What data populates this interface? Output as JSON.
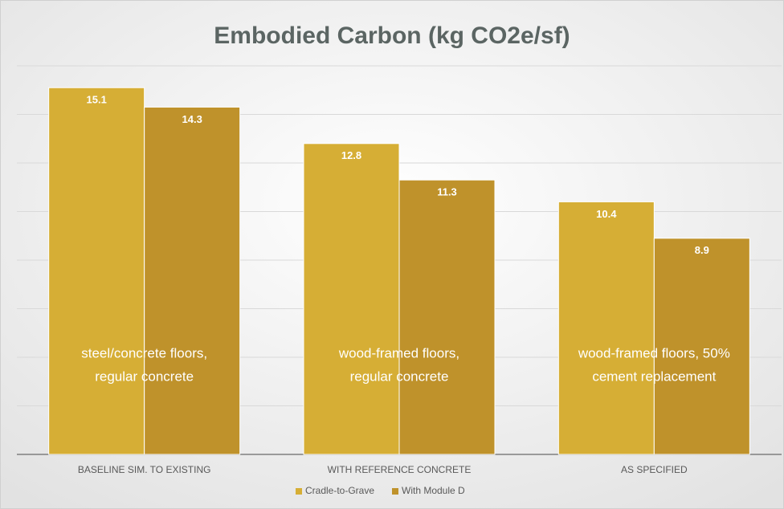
{
  "chart_data": {
    "type": "bar",
    "title": "Embodied Carbon (kg CO2e/sf)",
    "categories": [
      "BASELINE SIM. TO EXISTING",
      "WITH REFERENCE CONCRETE",
      "AS SPECIFIED"
    ],
    "series": [
      {
        "name": "Cradle-to-Grave",
        "color": "#d6ae35",
        "values": [
          15.1,
          12.8,
          10.4
        ]
      },
      {
        "name": "With Module D",
        "color": "#bf922b",
        "values": [
          14.3,
          11.3,
          8.9
        ]
      }
    ],
    "annotations": [
      [
        "steel/concrete floors,",
        "regular concrete"
      ],
      [
        "wood-framed floors,",
        "regular concrete"
      ],
      [
        "wood-framed floors, 50%",
        "cement replacement"
      ]
    ],
    "ylim": [
      0,
      16
    ],
    "yticks": [
      0,
      2,
      4,
      6,
      8,
      10,
      12,
      14,
      16
    ],
    "grid": true,
    "legend": "bottom"
  }
}
